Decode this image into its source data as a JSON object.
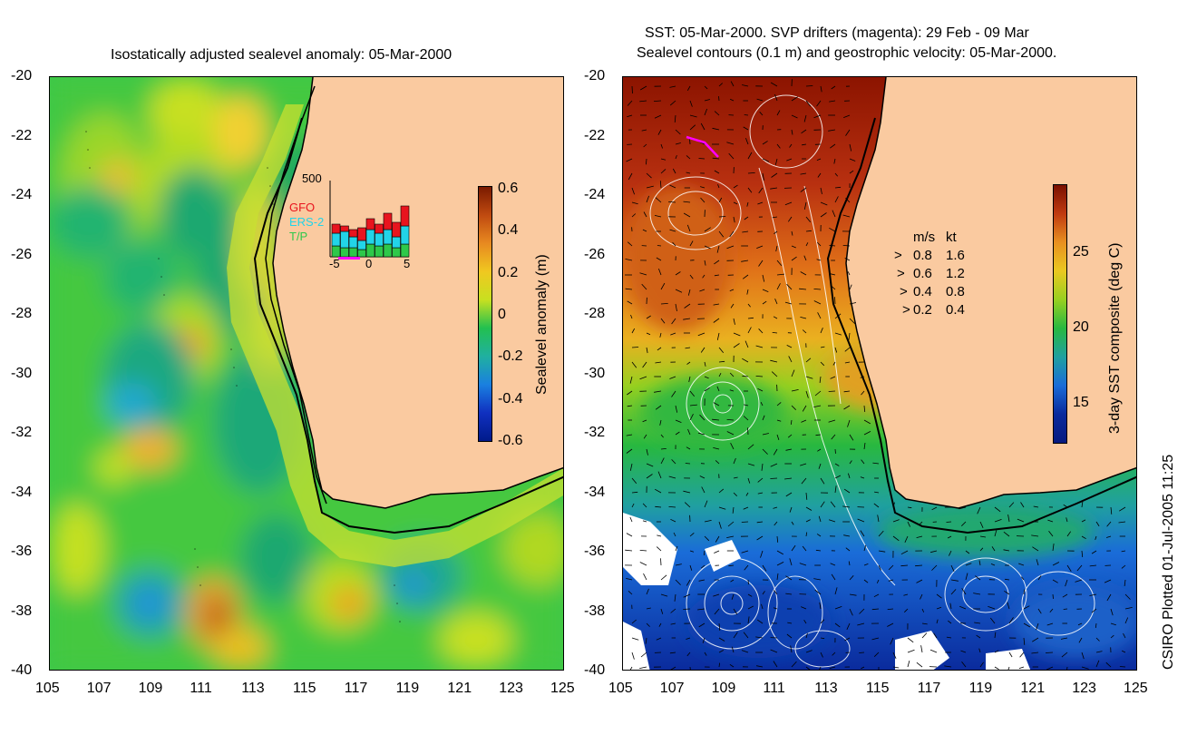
{
  "left": {
    "title": "Isostatically adjusted sealevel anomaly: 05-Mar-2000",
    "colorbar_label": "Sealevel anomaly (m)",
    "colorbar_ticks": [
      "0.6",
      "0.4",
      "0.2",
      "0",
      "-0.2",
      "-0.4",
      "-0.6"
    ],
    "inset": {
      "ymax_label": "500",
      "legend": [
        {
          "name": "GFO",
          "color": "#e8141e"
        },
        {
          "name": "ERS-2",
          "color": "#22d4e8"
        },
        {
          "name": "T/P",
          "color": "#2ec84a"
        }
      ],
      "xticks": [
        "-5",
        "0",
        "5"
      ]
    }
  },
  "right": {
    "title_line1": "SST: 05-Mar-2000. SVP drifters (magenta): 29 Feb - 09 Mar",
    "title_line2": "Sealevel contours (0.1 m) and geostrophic velocity: 05-Mar-2000.",
    "colorbar_label": "3-day SST composite (deg C)",
    "colorbar_ticks": [
      "25",
      "20",
      "15"
    ],
    "speed_legend": {
      "header_ms": "m/s",
      "header_kt": "kt",
      "rows": [
        {
          "ms": "0.8",
          "kt": "1.6"
        },
        {
          "ms": "0.6",
          "kt": "1.2"
        },
        {
          "ms": "0.4",
          "kt": "0.8"
        },
        {
          "ms": "0.2",
          "kt": "0.4"
        }
      ]
    }
  },
  "axes": {
    "y_ticks": [
      "-20",
      "-22",
      "-24",
      "-26",
      "-28",
      "-30",
      "-32",
      "-34",
      "-36",
      "-38",
      "-40"
    ],
    "x_ticks": [
      "105",
      "107",
      "109",
      "111",
      "113",
      "115",
      "117",
      "119",
      "121",
      "123",
      "125"
    ]
  },
  "credit": "CSIRO Plotted 01-Jul-2005 11:25",
  "colors": {
    "land": "#facaa0",
    "sla_high": "#7a1a00",
    "sla_zero": "#22c050",
    "sla_low": "#001a8a",
    "sst_warm": "#8c1400",
    "sst_cool": "#0a2a9c",
    "drifter": "#ff00ff"
  }
}
